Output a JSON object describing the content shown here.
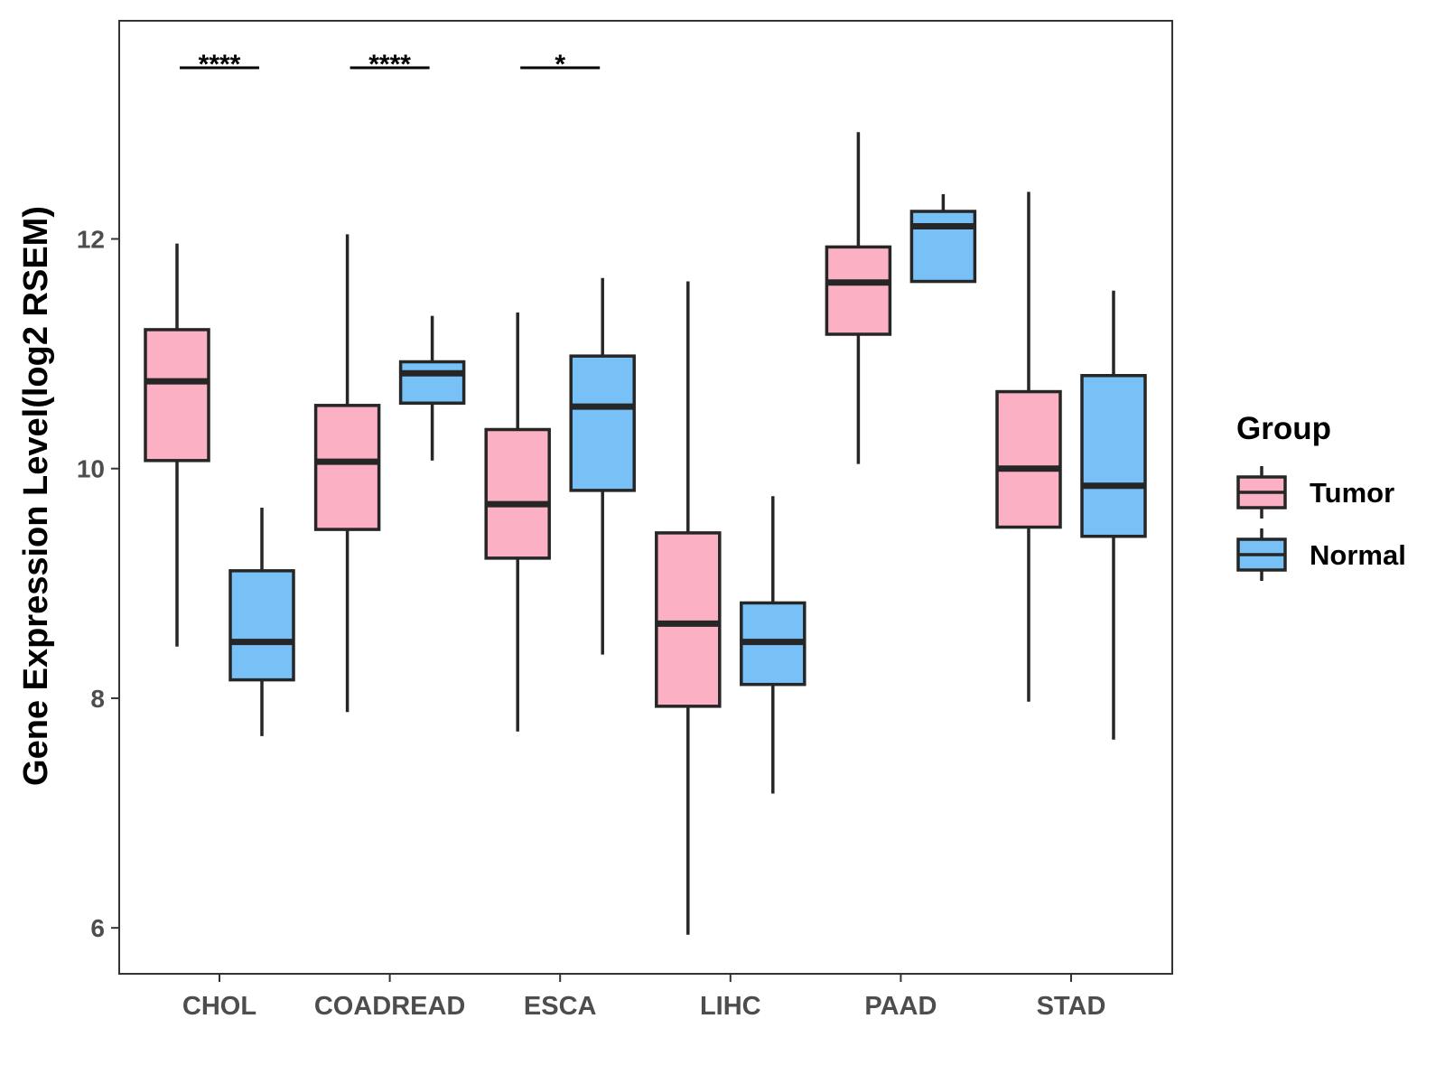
{
  "chart_data": {
    "type": "boxplot",
    "ylabel": "Gene Expression Level(log2 RSEM)",
    "xlabel": "",
    "ylim": [
      5.6,
      13.9
    ],
    "yticks": [
      6,
      8,
      10,
      12
    ],
    "ytick_labels": [
      "6",
      "8",
      "10",
      "12"
    ],
    "categories": [
      "CHOL",
      "COADREAD",
      "ESCA",
      "LIHC",
      "PAAD",
      "STAD"
    ],
    "legend": {
      "title": "Group",
      "position": "right",
      "items": [
        {
          "label": "Tumor",
          "color": "#FBB1C3"
        },
        {
          "label": "Normal",
          "color": "#78C1F7"
        }
      ]
    },
    "series": [
      {
        "name": "Tumor",
        "color": "#FBB1C3",
        "boxes": [
          {
            "category": "CHOL",
            "min": 8.45,
            "q1": 10.07,
            "median": 10.76,
            "q3": 11.21,
            "max": 11.96
          },
          {
            "category": "COADREAD",
            "min": 7.88,
            "q1": 9.47,
            "median": 10.06,
            "q3": 10.55,
            "max": 12.04
          },
          {
            "category": "ESCA",
            "min": 7.71,
            "q1": 9.22,
            "median": 9.69,
            "q3": 10.34,
            "max": 11.36
          },
          {
            "category": "LIHC",
            "min": 5.94,
            "q1": 7.93,
            "median": 8.65,
            "q3": 9.44,
            "max": 11.63
          },
          {
            "category": "PAAD",
            "min": 10.04,
            "q1": 11.17,
            "median": 11.62,
            "q3": 11.93,
            "max": 12.93
          },
          {
            "category": "STAD",
            "min": 7.97,
            "q1": 9.49,
            "median": 10.0,
            "q3": 10.67,
            "max": 12.41
          }
        ]
      },
      {
        "name": "Normal",
        "color": "#78C1F7",
        "boxes": [
          {
            "category": "CHOL",
            "min": 7.67,
            "q1": 8.16,
            "median": 8.49,
            "q3": 9.11,
            "max": 9.66
          },
          {
            "category": "COADREAD",
            "min": 10.07,
            "q1": 10.57,
            "median": 10.83,
            "q3": 10.93,
            "max": 11.33
          },
          {
            "category": "ESCA",
            "min": 8.38,
            "q1": 9.81,
            "median": 10.54,
            "q3": 10.98,
            "max": 11.66
          },
          {
            "category": "LIHC",
            "min": 7.17,
            "q1": 8.12,
            "median": 8.49,
            "q3": 8.83,
            "max": 9.76
          },
          {
            "category": "PAAD",
            "min": 11.63,
            "q1": 11.63,
            "median": 12.11,
            "q3": 12.24,
            "max": 12.39
          },
          {
            "category": "STAD",
            "min": 7.64,
            "q1": 9.41,
            "median": 9.85,
            "q3": 10.81,
            "max": 11.55
          }
        ]
      }
    ],
    "significance": [
      {
        "category": "CHOL",
        "label": "****"
      },
      {
        "category": "COADREAD",
        "label": "****"
      },
      {
        "category": "ESCA",
        "label": "*"
      }
    ]
  }
}
